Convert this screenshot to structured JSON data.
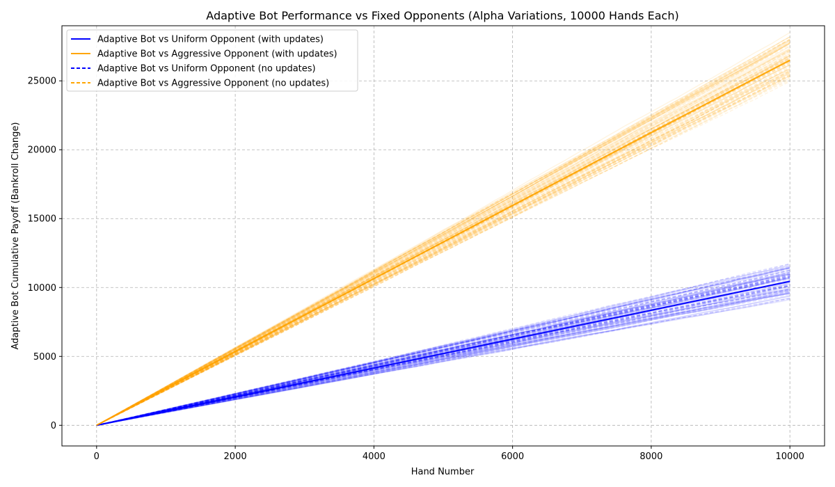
{
  "chart_data": {
    "type": "line",
    "title": "Adaptive Bot Performance vs Fixed Opponents (Alpha Variations, 10000 Hands Each)",
    "xlabel": "Hand Number",
    "ylabel": "Adaptive Bot Cumulative Payoff (Bankroll Change)",
    "xlim": [
      -500,
      10500
    ],
    "ylim": [
      -1500,
      29000
    ],
    "x_ticks": [
      0,
      2000,
      4000,
      6000,
      8000,
      10000
    ],
    "y_ticks": [
      0,
      5000,
      10000,
      15000,
      20000,
      25000
    ],
    "grid": true,
    "legend_position": "top-left",
    "series": [
      {
        "name": "Adaptive Bot vs Uniform Opponent (with updates)",
        "color": "#0000ff",
        "style": "solid",
        "x": [
          0,
          2000,
          4000,
          6000,
          8000,
          10000
        ],
        "y_mean": [
          0,
          2050,
          4150,
          6250,
          8350,
          10450
        ],
        "final_range": [
          9300,
          11600
        ]
      },
      {
        "name": "Adaptive Bot vs Aggressive Opponent (with updates)",
        "color": "#ffa500",
        "style": "solid",
        "x": [
          0,
          2000,
          4000,
          6000,
          8000,
          10000
        ],
        "y_mean": [
          0,
          5350,
          10650,
          15950,
          21250,
          26500
        ],
        "final_range": [
          25200,
          28200
        ]
      },
      {
        "name": "Adaptive Bot vs Uniform Opponent (no updates)",
        "color": "#0000ff",
        "style": "dashed",
        "x": [
          0,
          2000,
          4000,
          6000,
          8000,
          10000
        ],
        "y_mean": [
          0,
          2050,
          4150,
          6250,
          8350,
          10450
        ],
        "final_range": [
          9300,
          11600
        ]
      },
      {
        "name": "Adaptive Bot vs Aggressive Opponent (no updates)",
        "color": "#ffa500",
        "style": "dashed",
        "x": [
          0,
          2000,
          4000,
          6000,
          8000,
          10000
        ],
        "y_mean": [
          0,
          5350,
          10650,
          15950,
          21250,
          26500
        ],
        "final_range": [
          25200,
          28200
        ]
      }
    ]
  }
}
